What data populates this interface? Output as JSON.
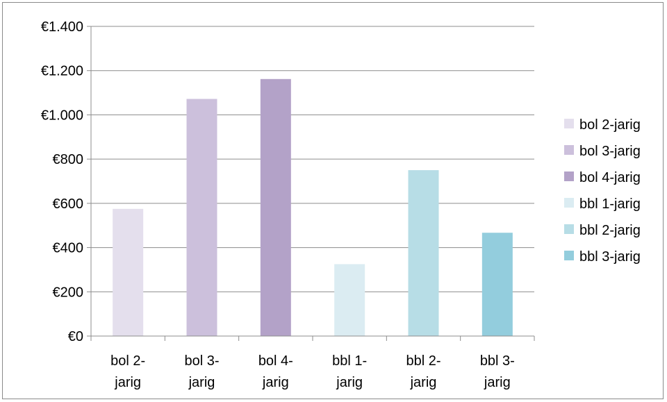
{
  "chart_data": {
    "type": "bar",
    "categories": [
      "bol 2-jarig",
      "bol 3-jarig",
      "bol 4-jarig",
      "bbl 1-jarig",
      "bbl 2-jarig",
      "bbl 3-jarig"
    ],
    "category_labels": [
      [
        "bol 2-",
        "jarig"
      ],
      [
        "bol 3-",
        "jarig"
      ],
      [
        "bol 4-",
        "jarig"
      ],
      [
        "bbl 1-",
        "jarig"
      ],
      [
        "bbl 2-",
        "jarig"
      ],
      [
        "bbl 3-",
        "jarig"
      ]
    ],
    "values": [
      575,
      1072,
      1162,
      325,
      750,
      467
    ],
    "colors": [
      "#e4dfed",
      "#ccc0dc",
      "#b3a2c8",
      "#dbecf2",
      "#b7dde6",
      "#93cddd"
    ],
    "ylim": [
      0,
      1400
    ],
    "yticks": [
      0,
      200,
      400,
      600,
      800,
      1000,
      1200,
      1400
    ],
    "ytick_labels": [
      "€0",
      "€200",
      "€400",
      "€600",
      "€800",
      "€1.000",
      "€1.200",
      "€1.400"
    ],
    "legend": [
      "bol 2-jarig",
      "bol 3-jarig",
      "bol 4-jarig",
      "bbl 1-jarig",
      "bbl 2-jarig",
      "bbl 3-jarig"
    ],
    "legend_position": "right",
    "grid": true,
    "title": "",
    "xlabel": "",
    "ylabel": ""
  }
}
